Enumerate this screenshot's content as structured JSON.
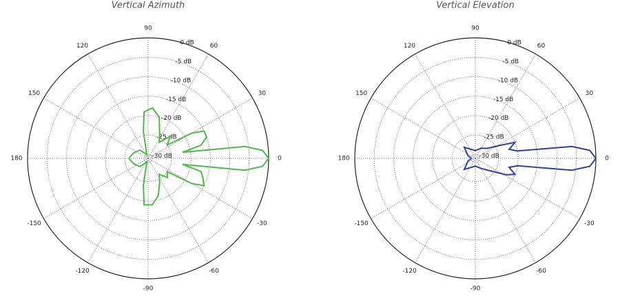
{
  "chart_data": [
    {
      "type": "polar",
      "title": "Vertical Azimuth",
      "color": "#4db848",
      "x": [
        -180,
        -160,
        -135,
        -110,
        -100,
        -95,
        -85,
        -75,
        -65,
        -55,
        -45,
        -35,
        -30,
        -26,
        -20,
        -14,
        -10,
        -7,
        -4,
        0,
        4,
        7,
        10,
        14,
        20,
        26,
        30,
        35,
        45,
        55,
        65,
        75,
        85,
        95,
        100,
        110,
        135,
        160,
        180
      ],
      "values": [
        -26,
        -27,
        -28,
        -30,
        -24,
        -19,
        -19,
        -21,
        -24,
        -26,
        -24,
        -25,
        -18,
        -15,
        -16,
        -17,
        -22,
        -6,
        -1.5,
        0,
        -1.5,
        -6,
        -22,
        -17,
        -15,
        -15,
        -18,
        -25,
        -23,
        -26,
        -24,
        -20,
        -18,
        -19,
        -24,
        -30,
        -28,
        -27,
        -26
      ],
      "rlim": [
        -31,
        0
      ],
      "rticks": [
        {
          "value": 0,
          "label": "0 dB"
        },
        {
          "value": -5,
          "label": "-5 dB"
        },
        {
          "value": -10,
          "label": "-10 dB"
        },
        {
          "value": -15,
          "label": "-15 dB"
        },
        {
          "value": -20,
          "label": "-20 dB"
        },
        {
          "value": -25,
          "label": "-25 dB"
        },
        {
          "value": -30,
          "label": "-30 dB"
        }
      ],
      "thetaticks": [
        0,
        30,
        60,
        90,
        120,
        150,
        180,
        -150,
        -120,
        -90,
        -60,
        -30
      ],
      "grid": true
    },
    {
      "type": "polar",
      "title": "Vertical Elevation",
      "color": "#2e3f9e",
      "x": [
        -180,
        -160,
        -135,
        -90,
        -60,
        -40,
        -28,
        -22,
        -15,
        -10,
        -7,
        -4,
        0,
        4,
        7,
        10,
        15,
        22,
        28,
        40,
        60,
        90,
        135,
        160,
        180
      ],
      "values": [
        -30,
        -29,
        -27,
        -29,
        -28,
        -26,
        -22,
        -20,
        -22,
        -20,
        -6,
        -1.5,
        0,
        -1.5,
        -6,
        -20,
        -22,
        -20,
        -24,
        -27,
        -28,
        -29,
        -27,
        -29,
        -30
      ],
      "rlim": [
        -31,
        0
      ],
      "rticks": [
        {
          "value": 0,
          "label": "0 dB"
        },
        {
          "value": -5,
          "label": "-5 dB"
        },
        {
          "value": -10,
          "label": "-10 dB"
        },
        {
          "value": -15,
          "label": "-15 dB"
        },
        {
          "value": -20,
          "label": "-20 dB"
        },
        {
          "value": -25,
          "label": "-25 dB"
        },
        {
          "value": -30,
          "label": "-30 dB"
        }
      ],
      "thetaticks": [
        0,
        30,
        60,
        90,
        120,
        150,
        180,
        -150,
        -120,
        -90,
        -60,
        -30
      ],
      "grid": true
    }
  ]
}
